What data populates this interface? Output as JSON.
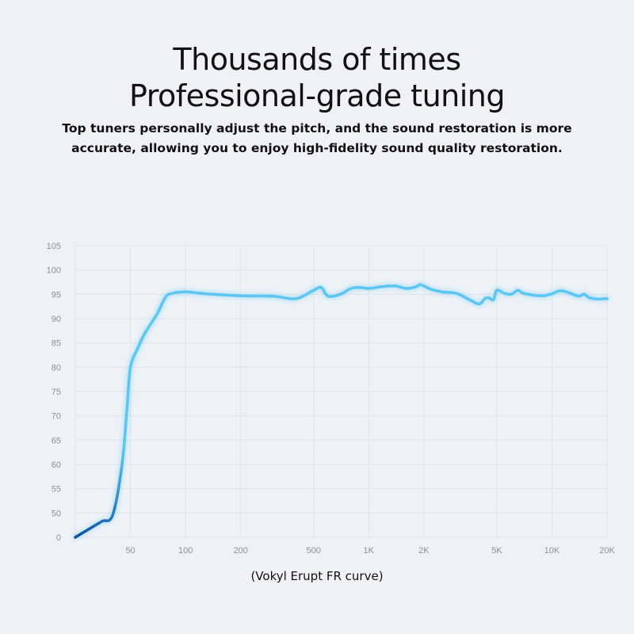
{
  "header": {
    "title_line1": "Thousands of times",
    "title_line2": "Professional-grade tuning",
    "description": "Top tuners personally adjust the pitch, and the sound restoration is more accurate, allowing you to enjoy high-fidelity sound quality restoration."
  },
  "caption": "(Vokyl Erupt FR curve)",
  "chart_data": {
    "type": "line",
    "title": "",
    "xlabel": "",
    "ylabel": "",
    "x_scale": "log",
    "grid": true,
    "y_tick_labels": [
      "0",
      "50",
      "55",
      "60",
      "65",
      "70",
      "75",
      "80",
      "85",
      "90",
      "95",
      "100",
      "105"
    ],
    "x_tick_labels": [
      "50",
      "100",
      "200",
      "500",
      "1K",
      "2K",
      "5K",
      "10K",
      "20K"
    ],
    "x_tick_values": [
      50,
      100,
      200,
      500,
      1000,
      2000,
      5000,
      10000,
      20000
    ],
    "xlim": [
      25,
      20000
    ],
    "colors": {
      "curve_low": "#0a4f9c",
      "curve_high": "#5cc6f2",
      "grid": "#dfe4ea"
    },
    "series": [
      {
        "x": [
          25,
          30,
          35,
          40,
          45,
          48,
          50,
          55,
          60,
          70,
          78,
          85,
          100,
          130,
          200,
          300,
          400,
          500,
          550,
          600,
          700,
          800,
          900,
          1000,
          1200,
          1400,
          1600,
          1800,
          1900,
          2000,
          2200,
          2500,
          3000,
          3500,
          4000,
          4300,
          4500,
          4800,
          5000,
          5500,
          6000,
          6500,
          7000,
          8000,
          9000,
          10000,
          11000,
          12000,
          13000,
          14000,
          14500,
          15000,
          16000,
          17000,
          18000,
          19000,
          20000
        ],
        "y": [
          0,
          18,
          33,
          46,
          60,
          72,
          80,
          84,
          87,
          91,
          94.5,
          95.2,
          95.5,
          95.1,
          94.7,
          94.6,
          94.1,
          95.8,
          96.4,
          94.6,
          95.0,
          96.2,
          96.4,
          96.2,
          96.6,
          96.7,
          96.2,
          96.5,
          97.0,
          96.7,
          96.0,
          95.5,
          95.2,
          94.0,
          93.0,
          94.1,
          94.3,
          93.9,
          95.8,
          95.2,
          95.0,
          95.8,
          95.2,
          94.8,
          94.7,
          95.1,
          95.7,
          95.5,
          95.0,
          94.6,
          94.8,
          95.0,
          94.3,
          94.1,
          94.0,
          94.1,
          94.1
        ]
      }
    ]
  }
}
